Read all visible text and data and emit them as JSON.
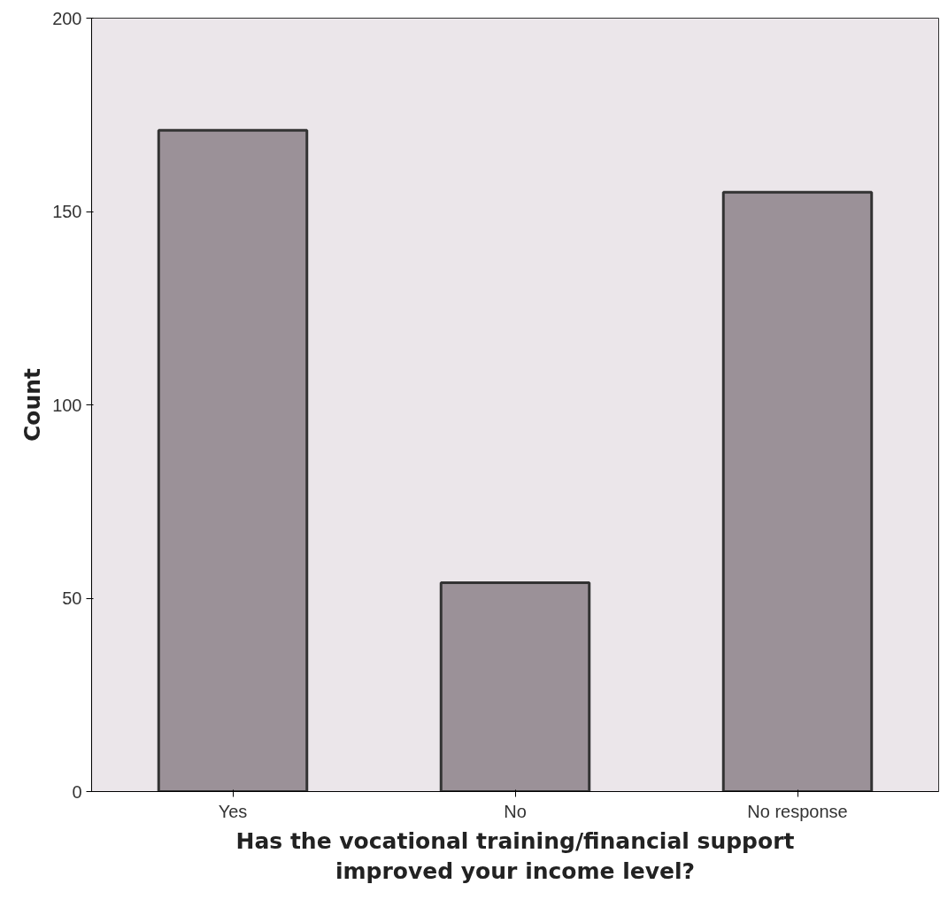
{
  "chart_data": {
    "type": "bar",
    "xlabel": "Has the vocational training/financial support improved your income level?",
    "ylabel": "Count",
    "categories": [
      "Yes",
      "No",
      "No response"
    ],
    "values": [
      171,
      54,
      155
    ],
    "color": "#9b9198",
    "ylim": [
      0,
      200
    ],
    "yticks": [
      0,
      50,
      100,
      150,
      200
    ],
    "grid": false
  }
}
